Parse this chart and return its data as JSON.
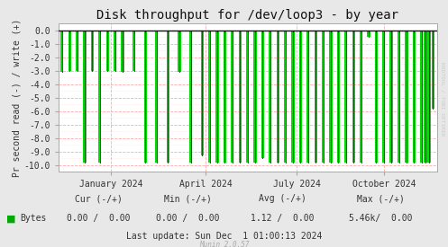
{
  "title": "Disk throughput for /dev/loop3 - by year",
  "ylabel": "Pr second read (-) / write (+)",
  "background_color": "#e8e8e8",
  "plot_bg_color": "#ffffff",
  "grid_color_major": "#ffaaaa",
  "grid_color_minor": "#ffdddd",
  "line_color": "#00dd00",
  "dark_line_color": "#006600",
  "zero_line_color": "#111111",
  "ylim": [
    -10.5,
    0.5
  ],
  "yticks": [
    0.0,
    -1.0,
    -2.0,
    -3.0,
    -4.0,
    -5.0,
    -6.0,
    -7.0,
    -8.0,
    -9.0,
    -10.0
  ],
  "xlabel_ticks": [
    "January 2024",
    "April 2024",
    "July 2024",
    "October 2024"
  ],
  "xlabel_tick_positions": [
    0.14,
    0.39,
    0.63,
    0.86
  ],
  "legend_label": "Bytes",
  "legend_color": "#00aa00",
  "cur_neg": "0.00",
  "cur_pos": "0.00",
  "min_neg": "0.00",
  "min_pos": "0.00",
  "avg_neg": "1.12",
  "avg_pos": "0.00",
  "max_neg": "5.46k",
  "max_pos": "0.00",
  "last_update": "Last update: Sun Dec  1 01:00:13 2024",
  "munin_version": "Munin 2.0.57",
  "rrdtool_label": "RRDTOOL / TOBI OETIKER",
  "title_fontsize": 10,
  "axis_fontsize": 7,
  "legend_fontsize": 7,
  "spike_x_positions": [
    0.01,
    0.03,
    0.05,
    0.07,
    0.09,
    0.11,
    0.13,
    0.15,
    0.17,
    0.2,
    0.23,
    0.26,
    0.29,
    0.32,
    0.35,
    0.38,
    0.4,
    0.42,
    0.44,
    0.46,
    0.48,
    0.5,
    0.52,
    0.54,
    0.56,
    0.58,
    0.6,
    0.62,
    0.64,
    0.66,
    0.68,
    0.7,
    0.72,
    0.74,
    0.76,
    0.78,
    0.8,
    0.82,
    0.84,
    0.86,
    0.88,
    0.9,
    0.92,
    0.94,
    0.96,
    0.97,
    0.98,
    0.99
  ],
  "spike_depths": [
    -3.1,
    -3.0,
    -3.0,
    -9.8,
    -3.0,
    -9.8,
    -3.0,
    -3.0,
    -3.1,
    -3.0,
    -9.8,
    -9.8,
    -9.8,
    -3.1,
    -9.8,
    -9.3,
    -9.8,
    -9.8,
    -9.8,
    -9.8,
    -9.8,
    -9.8,
    -9.8,
    -9.5,
    -9.8,
    -9.8,
    -9.8,
    -9.8,
    -9.8,
    -9.8,
    -9.8,
    -9.8,
    -9.8,
    -9.8,
    -9.8,
    -9.8,
    -9.8,
    -0.5,
    -9.8,
    -9.8,
    -9.8,
    -9.8,
    -9.8,
    -9.8,
    -9.8,
    -9.8,
    -9.8,
    -5.8
  ]
}
